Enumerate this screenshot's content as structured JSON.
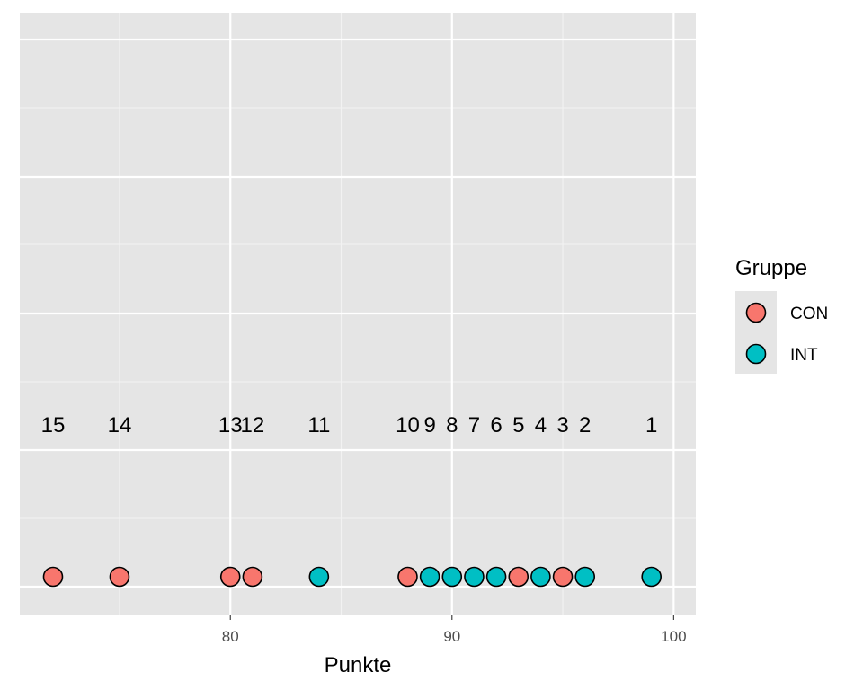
{
  "chart_data": {
    "type": "scatter",
    "xlabel": "Punkte",
    "ylabel": "",
    "xlim": [
      70.5,
      101
    ],
    "x_ticks": [
      80,
      90,
      100
    ],
    "grid": true,
    "legend": {
      "title": "Gruppe",
      "position": "right",
      "entries": [
        {
          "name": "CON",
          "color": "#F8766D"
        },
        {
          "name": "INT",
          "color": "#00BFC4"
        }
      ]
    },
    "points": [
      {
        "x": 72,
        "rank": "15",
        "group": "CON"
      },
      {
        "x": 75,
        "rank": "14",
        "group": "CON"
      },
      {
        "x": 80,
        "rank": "13",
        "group": "CON"
      },
      {
        "x": 81,
        "rank": "12",
        "group": "CON"
      },
      {
        "x": 84,
        "rank": "11",
        "group": "INT"
      },
      {
        "x": 88,
        "rank": "10",
        "group": "CON"
      },
      {
        "x": 89,
        "rank": "9",
        "group": "INT"
      },
      {
        "x": 90,
        "rank": "8",
        "group": "INT"
      },
      {
        "x": 91,
        "rank": "7",
        "group": "INT"
      },
      {
        "x": 92,
        "rank": "6",
        "group": "INT"
      },
      {
        "x": 93,
        "rank": "5",
        "group": "CON"
      },
      {
        "x": 94,
        "rank": "4",
        "group": "INT"
      },
      {
        "x": 95,
        "rank": "3",
        "group": "CON"
      },
      {
        "x": 96,
        "rank": "2",
        "group": "INT"
      },
      {
        "x": 99,
        "rank": "1",
        "group": "INT"
      }
    ]
  }
}
